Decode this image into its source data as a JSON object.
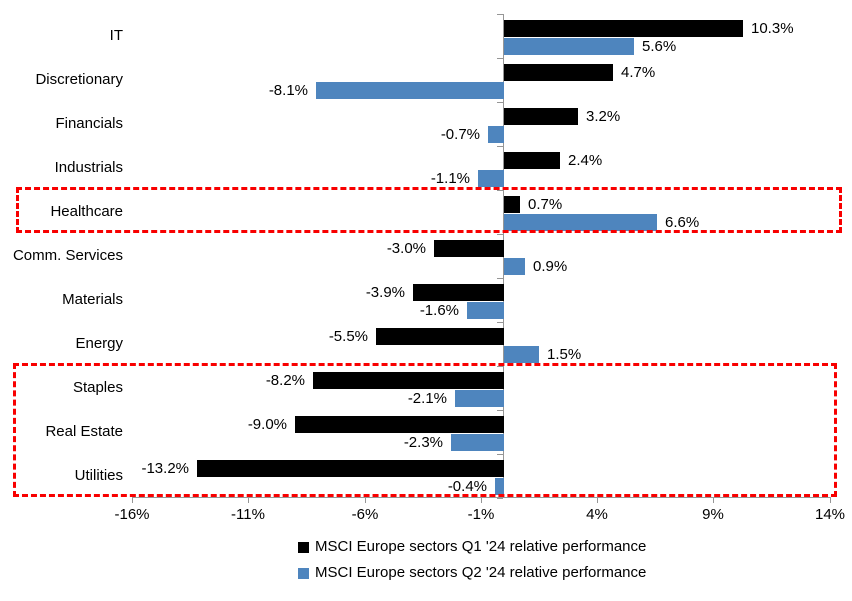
{
  "chart_data": {
    "type": "bar",
    "orientation": "horizontal",
    "categories": [
      "IT",
      "Discretionary",
      "Financials",
      "Industrials",
      "Healthcare",
      "Comm. Services",
      "Materials",
      "Energy",
      "Staples",
      "Real Estate",
      "Utilities"
    ],
    "series": [
      {
        "name": "MSCI Europe sectors Q1 '24 relative performance",
        "color": "#000000",
        "values": [
          10.3,
          4.7,
          3.2,
          2.4,
          0.7,
          -3.0,
          -3.9,
          -5.5,
          -8.2,
          -9.0,
          -13.2
        ],
        "labels": [
          "10.3%",
          "4.7%",
          "3.2%",
          "2.4%",
          "0.7%",
          "-3.0%",
          "-3.9%",
          "-5.5%",
          "-8.2%",
          "-9.0%",
          "-13.2%"
        ]
      },
      {
        "name": "MSCI Europe sectors Q2 '24 relative performance",
        "color": "#4E85BE",
        "values": [
          5.6,
          -8.1,
          -0.7,
          -1.1,
          6.6,
          0.9,
          -1.6,
          1.5,
          -2.1,
          -2.3,
          -0.4
        ],
        "labels": [
          "5.6%",
          "-8.1%",
          "-0.7%",
          "-1.1%",
          "6.6%",
          "0.9%",
          "-1.6%",
          "1.5%",
          "-2.1%",
          "-2.3%",
          "-0.4%"
        ]
      }
    ],
    "x_axis": {
      "tick_labels": [
        "-16%",
        "-11%",
        "-6%",
        "-1%",
        "4%",
        "9%",
        "14%"
      ],
      "tick_values": [
        -16,
        -11,
        -6,
        -1,
        4,
        9,
        14
      ],
      "range": [
        -16,
        14
      ],
      "grid": false
    },
    "legend_position": "bottom",
    "colors": {
      "axis": "#969696",
      "highlight": "#F80000",
      "background": "#FFFFFF"
    },
    "annotations": {
      "highlight_boxes": [
        {
          "row_start": 4,
          "row_end": 4,
          "rows": [
            "Healthcare"
          ]
        },
        {
          "row_start": 8,
          "row_end": 10,
          "rows": [
            "Staples",
            "Real Estate",
            "Utilities"
          ]
        }
      ]
    }
  }
}
